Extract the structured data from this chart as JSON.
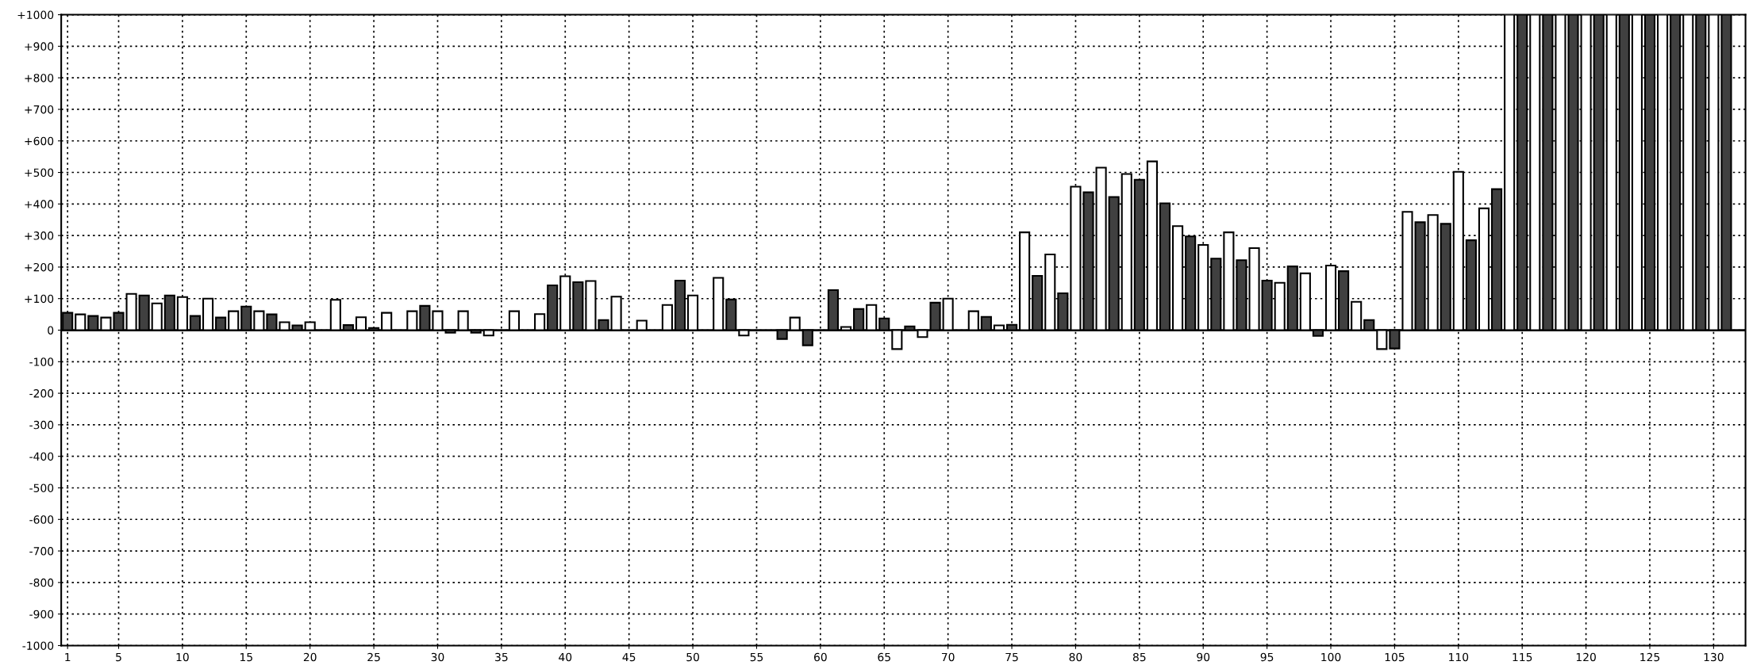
{
  "chart_data": {
    "type": "bar",
    "series": [
      {
        "color": "#404040",
        "x": [
          1,
          3,
          5,
          7,
          9,
          11,
          13,
          15,
          17,
          19,
          21,
          23,
          25,
          27,
          29,
          31,
          33,
          35,
          37,
          39,
          41,
          43,
          45,
          47,
          49,
          51,
          53,
          55,
          57,
          59,
          61,
          63,
          65,
          67,
          69,
          71,
          73,
          75,
          77,
          79,
          81,
          83,
          85,
          87,
          89,
          91,
          93,
          95,
          97,
          99,
          101,
          103,
          105,
          107,
          109,
          111,
          113,
          115,
          117,
          119,
          121,
          123,
          125,
          127,
          129,
          131
        ],
        "values": [
          55,
          45,
          55,
          110,
          110,
          45,
          40,
          75,
          50,
          15,
          null,
          16,
          7,
          null,
          77,
          -8,
          -8,
          null,
          null,
          142,
          152,
          32,
          null,
          null,
          157,
          null,
          97,
          null,
          -28,
          -48,
          127,
          67,
          37,
          12,
          87,
          null,
          42,
          17,
          172,
          117,
          437,
          422,
          477,
          402,
          297,
          227,
          222,
          157,
          202,
          -18,
          187,
          32,
          -58,
          342,
          337,
          285,
          447,
          1000,
          1000,
          1000,
          1000,
          1000,
          1000,
          1000,
          1000,
          1000
        ]
      },
      {
        "color": "#ffffff",
        "x": [
          2,
          4,
          6,
          8,
          10,
          12,
          14,
          16,
          18,
          20,
          22,
          24,
          26,
          28,
          30,
          32,
          34,
          36,
          38,
          40,
          42,
          44,
          46,
          48,
          50,
          52,
          54,
          56,
          58,
          60,
          62,
          64,
          66,
          68,
          70,
          72,
          74,
          76,
          78,
          80,
          82,
          84,
          86,
          88,
          90,
          92,
          94,
          96,
          98,
          100,
          102,
          104,
          106,
          108,
          110,
          112,
          114,
          116,
          118,
          120,
          122,
          124,
          126,
          128,
          130
        ],
        "values": [
          50,
          40,
          115,
          85,
          105,
          100,
          60,
          60,
          25,
          25,
          96,
          41,
          55,
          60,
          60,
          60,
          -17,
          60,
          51,
          171,
          156,
          106,
          30,
          80,
          110,
          166,
          -17,
          null,
          40,
          null,
          10,
          80,
          -60,
          -22,
          100,
          60,
          15,
          310,
          240,
          455,
          515,
          495,
          535,
          330,
          270,
          310,
          260,
          150,
          180,
          205,
          90,
          -60,
          375,
          365,
          502,
          386,
          1000,
          1000,
          1000,
          1000,
          1000,
          1000,
          1000,
          1000,
          1000
        ]
      }
    ],
    "xlim": [
      0.5,
      132.5
    ],
    "xticks": [
      1,
      5,
      10,
      15,
      20,
      25,
      30,
      35,
      40,
      45,
      50,
      55,
      60,
      65,
      70,
      75,
      80,
      85,
      90,
      95,
      100,
      105,
      110,
      115,
      120,
      125,
      130
    ],
    "ylim": [
      -1000,
      1000
    ],
    "yticks": [
      {
        "value": -1000,
        "label": "-1000"
      },
      {
        "value": -900,
        "label": "-900"
      },
      {
        "value": -800,
        "label": "-800"
      },
      {
        "value": -700,
        "label": "-700"
      },
      {
        "value": -600,
        "label": "-600"
      },
      {
        "value": -500,
        "label": "-500"
      },
      {
        "value": -400,
        "label": "-400"
      },
      {
        "value": -300,
        "label": "-300"
      },
      {
        "value": -200,
        "label": "-200"
      },
      {
        "value": -100,
        "label": "-100"
      },
      0,
      {
        "value": 100,
        "label": "+100"
      },
      {
        "value": 200,
        "label": "+200"
      },
      {
        "value": 300,
        "label": "+300"
      },
      {
        "value": 400,
        "label": "+400"
      },
      {
        "value": 500,
        "label": "+500"
      },
      {
        "value": 600,
        "label": "+600"
      },
      {
        "value": 700,
        "label": "+700"
      },
      {
        "value": 800,
        "label": "+800"
      },
      {
        "value": 900,
        "label": "+900"
      },
      {
        "value": 1000,
        "label": "+1000"
      }
    ],
    "ref_lines": [
      {
        "axis": "y",
        "value": 0,
        "color": "#000000",
        "line_style": "solid"
      }
    ],
    "grid": true
  }
}
